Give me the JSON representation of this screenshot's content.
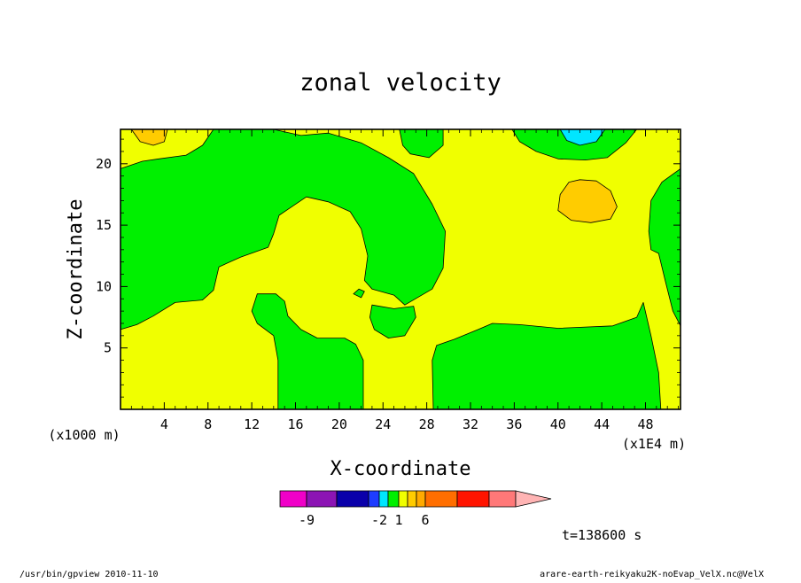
{
  "chart_data": {
    "type": "contour",
    "title": "zonal velocity",
    "xlabel": "X-coordinate",
    "ylabel": "Z-coordinate",
    "x_unit_label": "(x1E4 m)",
    "y_unit_label": "(x1000 m)",
    "xlim": [
      0,
      51.2
    ],
    "ylim": [
      0,
      22.8
    ],
    "x_ticks": [
      4,
      8,
      12,
      16,
      20,
      24,
      28,
      32,
      36,
      40,
      44,
      48
    ],
    "y_ticks": [
      5,
      10,
      15,
      20
    ],
    "background_color": "#f0ff00",
    "regions": [
      {
        "level": "0 to 1",
        "color": "#00f000",
        "points": [
          [
            0,
            6.5
          ],
          [
            1.5,
            6.9
          ],
          [
            3,
            7.6
          ],
          [
            5,
            8.7
          ],
          [
            7.5,
            8.9
          ],
          [
            8.5,
            9.7
          ],
          [
            9,
            11.6
          ],
          [
            11,
            12.4
          ],
          [
            13.5,
            13.2
          ],
          [
            14,
            14.3
          ],
          [
            14.5,
            15.8
          ],
          [
            15.5,
            16.4
          ],
          [
            17,
            17.3
          ],
          [
            19,
            16.9
          ],
          [
            21,
            16.1
          ],
          [
            22,
            14.7
          ],
          [
            22.6,
            12.5
          ],
          [
            22.3,
            10.5
          ],
          [
            23,
            9.8
          ],
          [
            25,
            9.3
          ],
          [
            26,
            8.5
          ],
          [
            28.5,
            9.8
          ],
          [
            29.5,
            11.5
          ],
          [
            29.7,
            14.5
          ],
          [
            28.5,
            16.7
          ],
          [
            26.8,
            19.2
          ],
          [
            24.5,
            20.5
          ],
          [
            22,
            21.7
          ],
          [
            19,
            22.5
          ],
          [
            16.5,
            22.3
          ],
          [
            14,
            22.8
          ],
          [
            8.5,
            22.8
          ],
          [
            7.5,
            21.5
          ],
          [
            6,
            20.7
          ],
          [
            3.5,
            20.4
          ],
          [
            2,
            20.2
          ],
          [
            0,
            19.6
          ]
        ]
      },
      {
        "level": "0 to 1",
        "color": "#00f000",
        "points": [
          [
            14.4,
            0
          ],
          [
            22.2,
            0
          ],
          [
            22.2,
            4
          ],
          [
            21.5,
            5.3
          ],
          [
            20.5,
            5.8
          ],
          [
            18,
            5.8
          ],
          [
            16.5,
            6.5
          ],
          [
            15.3,
            7.6
          ],
          [
            15,
            8.8
          ],
          [
            14.2,
            9.4
          ],
          [
            12.5,
            9.4
          ],
          [
            12,
            8
          ],
          [
            12.5,
            7
          ],
          [
            14,
            6
          ],
          [
            14.4,
            4
          ]
        ]
      },
      {
        "level": "0 to 1",
        "color": "#00f000",
        "points": [
          [
            23,
            8.5
          ],
          [
            25,
            8.2
          ],
          [
            26.8,
            8.4
          ],
          [
            27,
            7.5
          ],
          [
            26,
            6
          ],
          [
            24.5,
            5.8
          ],
          [
            23.2,
            6.5
          ],
          [
            22.8,
            7.5
          ]
        ]
      },
      {
        "level": "0 to 1",
        "color": "#00f000",
        "points": [
          [
            28.6,
            0
          ],
          [
            49.4,
            0
          ],
          [
            49.2,
            3
          ],
          [
            48.5,
            6
          ],
          [
            47.8,
            8.7
          ],
          [
            47.2,
            7.5
          ],
          [
            45,
            6.8
          ],
          [
            40,
            6.6
          ],
          [
            36.5,
            6.9
          ],
          [
            34,
            7
          ],
          [
            32.7,
            6.5
          ],
          [
            30.5,
            5.7
          ],
          [
            28.9,
            5.2
          ],
          [
            28.5,
            4
          ]
        ]
      },
      {
        "level": "0 to 1",
        "color": "#00f000",
        "points": [
          [
            51.2,
            19.6
          ],
          [
            49.5,
            18.5
          ],
          [
            48.5,
            17
          ],
          [
            48.3,
            14.5
          ],
          [
            48.5,
            13
          ],
          [
            49.2,
            12.7
          ],
          [
            49.8,
            10.5
          ],
          [
            50.5,
            8
          ],
          [
            51.2,
            6.8
          ]
        ]
      },
      {
        "level": "0 to 1",
        "color": "#00f000",
        "points": [
          [
            29.5,
            22.8
          ],
          [
            29.5,
            21.5
          ],
          [
            28.2,
            20.5
          ],
          [
            26.5,
            20.8
          ],
          [
            25.8,
            21.5
          ],
          [
            25.5,
            22.8
          ]
        ]
      },
      {
        "level": "0 to 1",
        "color": "#00f000",
        "points": [
          [
            35.8,
            22.8
          ],
          [
            36.5,
            21.8
          ],
          [
            38,
            21
          ],
          [
            40,
            20.4
          ],
          [
            42.5,
            20.3
          ],
          [
            44.5,
            20.5
          ],
          [
            46.2,
            21.7
          ],
          [
            47.2,
            22.8
          ]
        ]
      },
      {
        "level": "0 to 1",
        "color": "#00f000",
        "points": [
          [
            21.3,
            9.4
          ],
          [
            21.8,
            9.8
          ],
          [
            22.3,
            9.6
          ],
          [
            22,
            9.1
          ]
        ]
      },
      {
        "level": "3 to 4",
        "color": "#ffcc00",
        "points": [
          [
            40.2,
            17.5
          ],
          [
            41,
            18.5
          ],
          [
            42,
            18.7
          ],
          [
            43.5,
            18.6
          ],
          [
            44.8,
            17.8
          ],
          [
            45.4,
            16.5
          ],
          [
            44.8,
            15.5
          ],
          [
            43,
            15.2
          ],
          [
            41.2,
            15.4
          ],
          [
            40,
            16.2
          ]
        ]
      },
      {
        "level": "3 to 4",
        "color": "#ffcc00",
        "points": [
          [
            1,
            22.8
          ],
          [
            1.8,
            21.8
          ],
          [
            3,
            21.5
          ],
          [
            4,
            21.8
          ],
          [
            4.3,
            22.8
          ]
        ]
      },
      {
        "level": "-1 to 0",
        "color": "#00e6ff",
        "points": [
          [
            40.2,
            22.8
          ],
          [
            40.8,
            21.9
          ],
          [
            42,
            21.5
          ],
          [
            43.5,
            21.8
          ],
          [
            44.3,
            22.8
          ]
        ]
      }
    ],
    "colorbar": {
      "colors": [
        "#f000c8",
        "#8c14b4",
        "#0a00aa",
        "#1e3cff",
        "#00e6ff",
        "#00f000",
        "#f0ff00",
        "#ffcc00",
        "#ffaa00",
        "#ff6e00",
        "#ff1400",
        "#ff7878",
        "#ffb4b4"
      ],
      "labels": [
        {
          "text": "-9",
          "after_box": 1
        },
        {
          "text": "-2",
          "after_box": 4
        },
        {
          "text": "1",
          "after_box": 6
        },
        {
          "text": "6",
          "after_box": 9
        }
      ]
    },
    "time_label": "t=138600 s",
    "footer_left": "/usr/bin/gpview  2010-11-10",
    "footer_right": "arare-earth-reikyaku2K-noEvap_VelX.nc@VelX"
  }
}
